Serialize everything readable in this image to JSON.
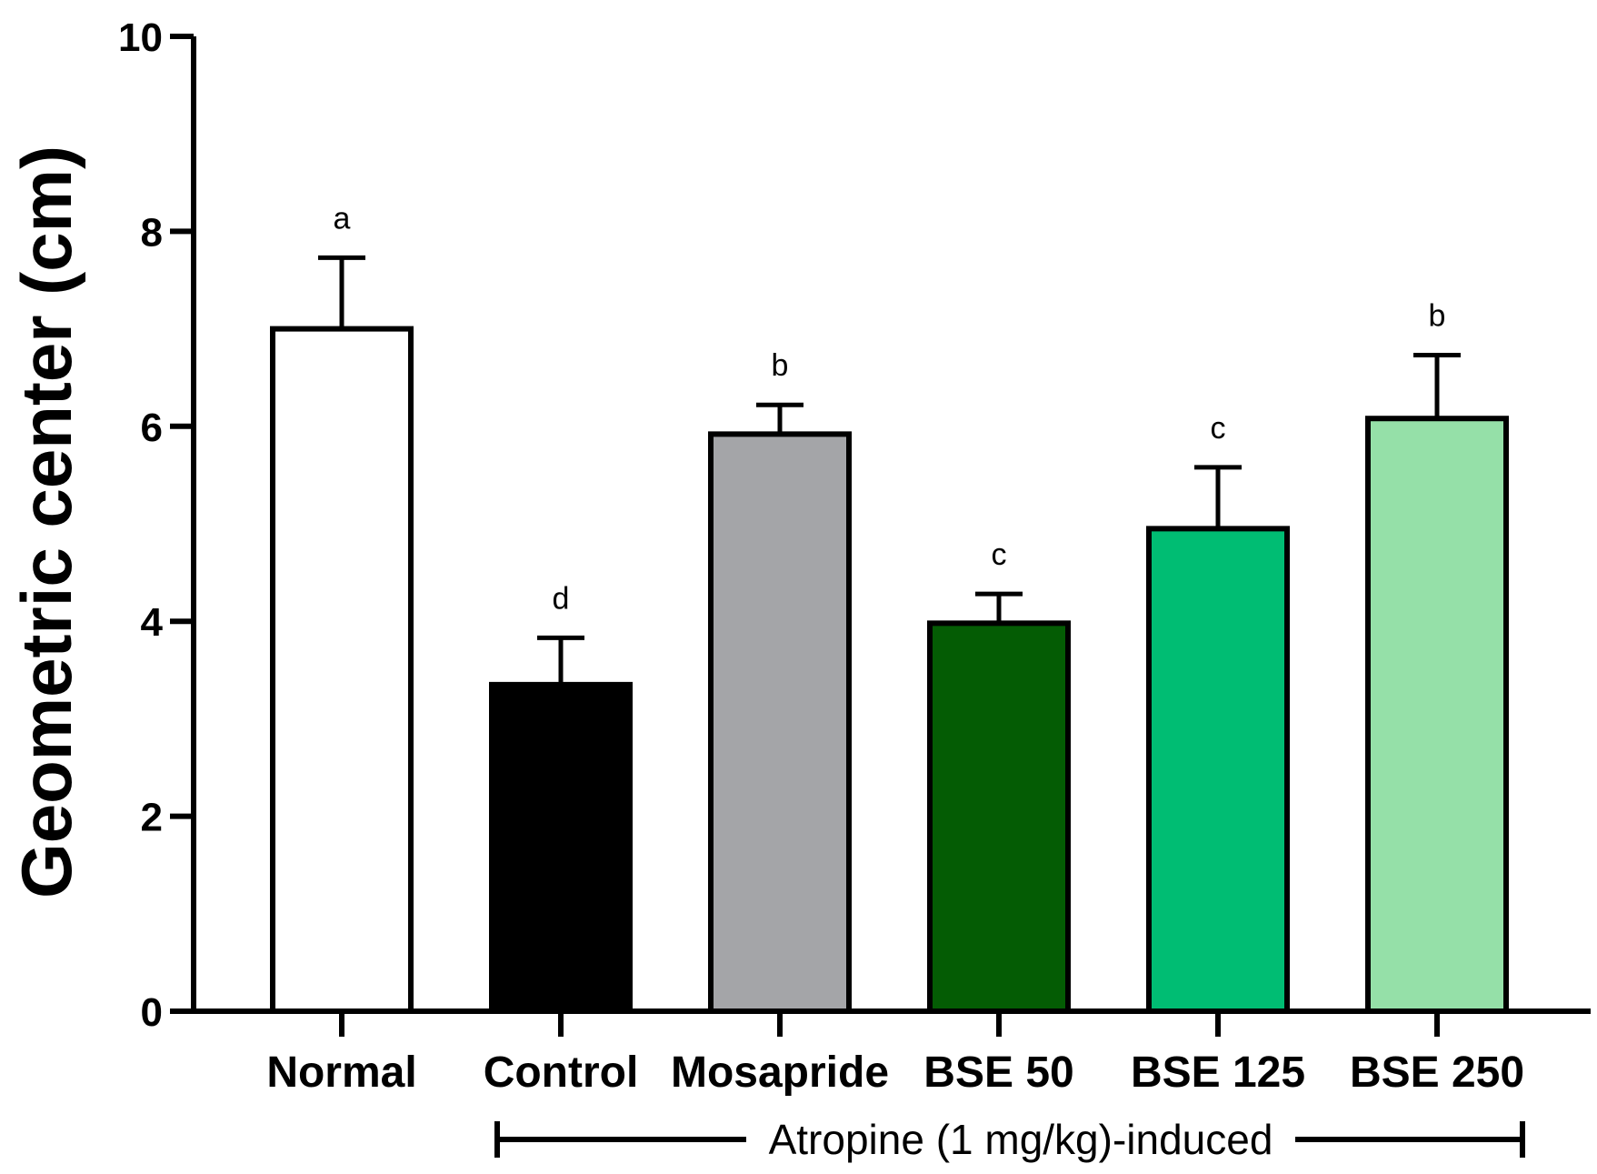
{
  "chart_data": {
    "type": "bar",
    "title": "",
    "xlabel": "",
    "ylabel": "Geometric center (cm)",
    "ylim": [
      0,
      10
    ],
    "yticks": [
      0,
      2,
      4,
      6,
      8,
      10
    ],
    "categories": [
      "Normal",
      "Control",
      "Mosapride",
      "BSE 50",
      "BSE 125",
      "BSE 250"
    ],
    "values": [
      7.0,
      3.35,
      5.92,
      3.98,
      4.95,
      6.08
    ],
    "errors": [
      0.73,
      0.48,
      0.3,
      0.3,
      0.63,
      0.65
    ],
    "significance": [
      "a",
      "d",
      "b",
      "c",
      "c",
      "b"
    ],
    "colors": [
      "#ffffff",
      "#000000",
      "#a4a5a8",
      "#045c04",
      "#00bd73",
      "#95e0a8"
    ],
    "group_bracket": {
      "label": "Atropine (1 mg/kg)-induced",
      "from_category": "Control",
      "to_category": "BSE 250"
    }
  }
}
